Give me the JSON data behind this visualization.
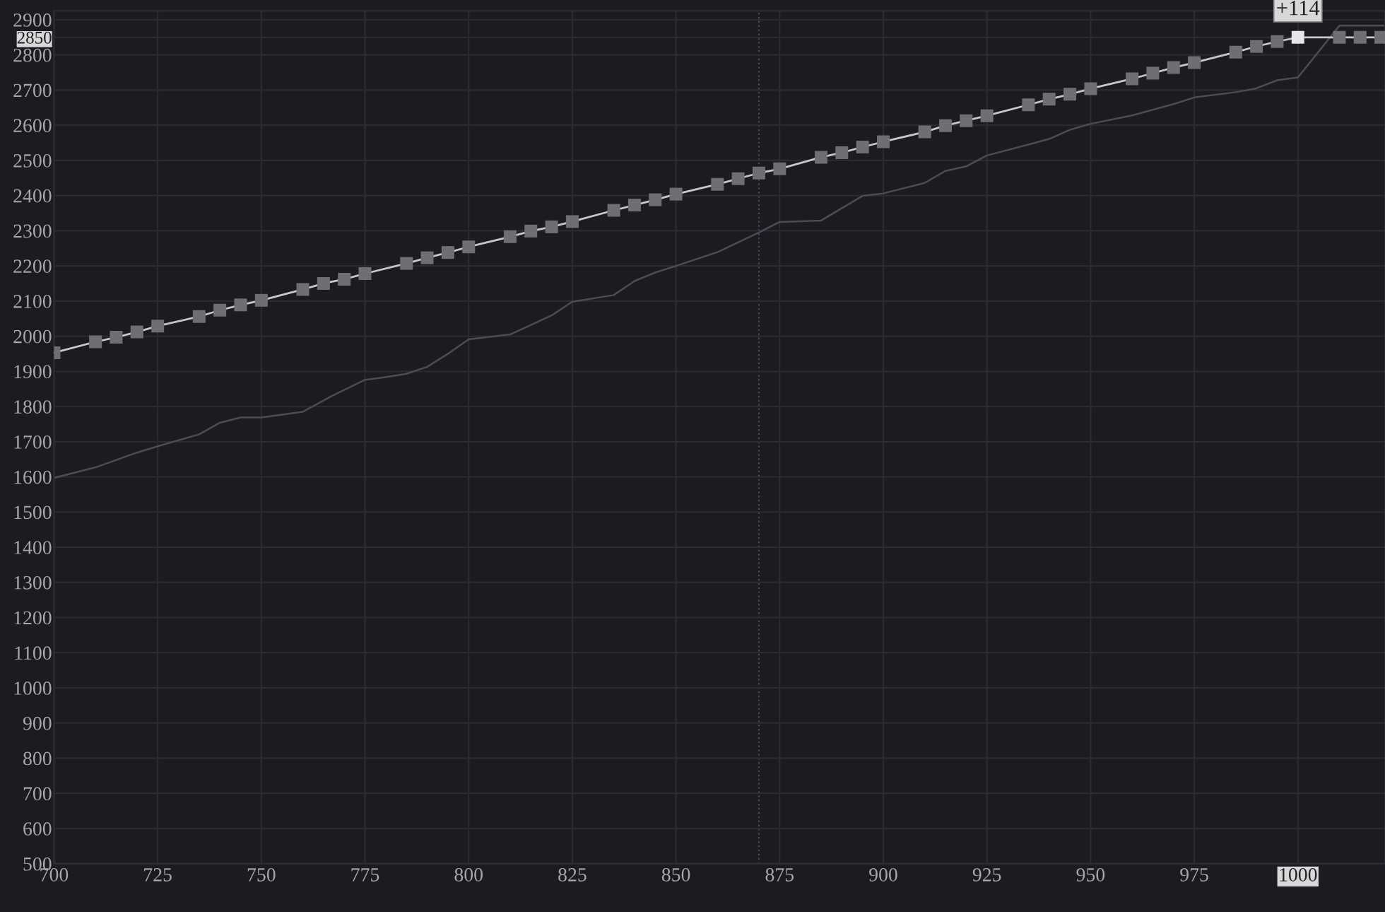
{
  "chart_data": {
    "type": "line",
    "grid": true,
    "legend": false,
    "xlim": [
      700,
      1021
    ],
    "ylim": [
      500,
      2925
    ],
    "xticks": [
      700,
      725,
      750,
      775,
      800,
      825,
      850,
      875,
      900,
      925,
      950,
      975,
      1000
    ],
    "yticks": [
      500,
      600,
      700,
      800,
      900,
      1000,
      1100,
      1200,
      1300,
      1400,
      1500,
      1600,
      1700,
      1800,
      1900,
      2000,
      2100,
      2200,
      2300,
      2400,
      2500,
      2600,
      2700,
      2800,
      2850,
      2900
    ],
    "ref_lines": [
      {
        "axis": "x",
        "value": 870,
        "color": "#4a4a52",
        "line_style": "dotted"
      }
    ],
    "annotations": [
      {
        "text": "+114",
        "x": 1000,
        "y": 2850
      }
    ],
    "series": [
      {
        "color": "#c8c8cc",
        "marker": "square",
        "x": [
          700,
          710,
          715,
          720,
          725,
          735,
          740,
          745,
          750,
          760,
          765,
          770,
          775,
          785,
          790,
          795,
          800,
          810,
          815,
          820,
          825,
          835,
          840,
          845,
          850,
          860,
          865,
          870,
          875,
          885,
          890,
          895,
          900,
          910,
          915,
          920,
          925,
          935,
          940,
          945,
          950,
          960,
          965,
          970,
          975,
          985,
          990,
          995,
          1000,
          1010,
          1015,
          1020
        ],
        "values": [
          1953,
          1984,
          1997,
          2012,
          2029,
          2056,
          2074,
          2089,
          2102,
          2133,
          2150,
          2162,
          2178,
          2207,
          2223,
          2238,
          2254,
          2283,
          2299,
          2311,
          2326,
          2358,
          2373,
          2388,
          2404,
          2432,
          2448,
          2464,
          2476,
          2509,
          2522,
          2538,
          2553,
          2581,
          2599,
          2613,
          2627,
          2658,
          2674,
          2688,
          2704,
          2732,
          2748,
          2764,
          2778,
          2808,
          2824,
          2838,
          2850,
          2850,
          2850,
          2850
        ],
        "colors": [
          "#6e6e73",
          "#6e6e73",
          "#6e6e73",
          "#6e6e73",
          "#6e6e73",
          "#6e6e73",
          "#6e6e73",
          "#6e6e73",
          "#6e6e73",
          "#6e6e73",
          "#6e6e73",
          "#6e6e73",
          "#6e6e73",
          "#6e6e73",
          "#6e6e73",
          "#6e6e73",
          "#6e6e73",
          "#6e6e73",
          "#6e6e73",
          "#6e6e73",
          "#6e6e73",
          "#6e6e73",
          "#6e6e73",
          "#6e6e73",
          "#6e6e73",
          "#6e6e73",
          "#6e6e73",
          "#6e6e73",
          "#6e6e73",
          "#6e6e73",
          "#6e6e73",
          "#6e6e73",
          "#6e6e73",
          "#6e6e73",
          "#6e6e73",
          "#6e6e73",
          "#6e6e73",
          "#6e6e73",
          "#6e6e73",
          "#6e6e73",
          "#6e6e73",
          "#6e6e73",
          "#6e6e73",
          "#6e6e73",
          "#6e6e73",
          "#6e6e73",
          "#6e6e73",
          "#6e6e73",
          "#e6e6e8",
          "#6e6e73",
          "#6e6e73",
          "#6e6e73"
        ]
      },
      {
        "color": "#4c4c54",
        "marker": "none",
        "x": [
          700,
          710,
          720,
          725,
          735,
          740,
          745,
          750,
          760,
          767,
          775,
          779,
          785,
          790,
          795,
          800,
          810,
          820,
          825,
          835,
          840,
          845,
          850,
          860,
          870,
          875,
          885,
          895,
          900,
          910,
          915,
          920,
          925,
          935,
          940,
          945,
          950,
          960,
          965,
          970,
          975,
          985,
          990,
          995,
          1000,
          1010,
          1021
        ],
        "values": [
          1597,
          1627,
          1669,
          1687,
          1721,
          1754,
          1769,
          1769,
          1785,
          1830,
          1876,
          1882,
          1893,
          1913,
          1950,
          1991,
          2005,
          2059,
          2098,
          2117,
          2157,
          2181,
          2200,
          2239,
          2295,
          2325,
          2329,
          2399,
          2406,
          2436,
          2470,
          2483,
          2514,
          2545,
          2561,
          2587,
          2604,
          2628,
          2644,
          2660,
          2679,
          2694,
          2705,
          2728,
          2736,
          2883,
          2883
        ]
      }
    ]
  }
}
